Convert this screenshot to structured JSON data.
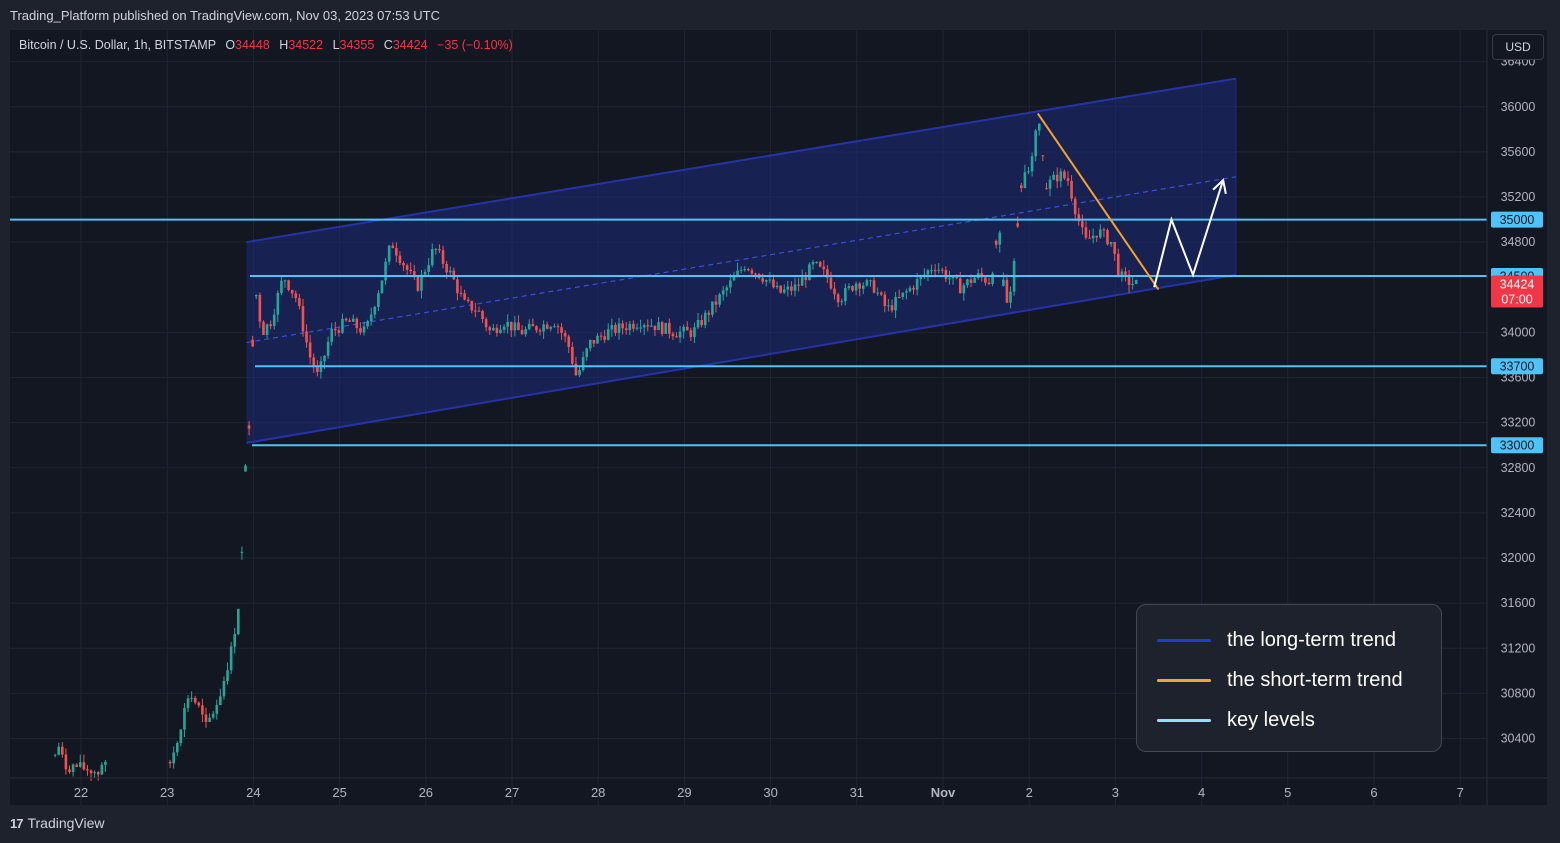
{
  "header": {
    "published": "Trading_Platform published on TradingView.com, Nov 03, 2023 07:53 UTC",
    "symbol": "Bitcoin / U.S. Dollar, 1h, BITSTAMP",
    "ohlc": [
      {
        "k": "O",
        "v": "34448"
      },
      {
        "k": "H",
        "v": "34522"
      },
      {
        "k": "L",
        "v": "34355"
      },
      {
        "k": "C",
        "v": "34424"
      }
    ],
    "change": "−35 (−0.10%)",
    "currency": "USD"
  },
  "footer": {
    "brand": "TradingView"
  },
  "legend": {
    "items": [
      {
        "label": "the long-term trend",
        "color": "#1e3adb"
      },
      {
        "label": "the short-term trend",
        "color": "#f7a22e"
      },
      {
        "label": "key levels",
        "color": "#8fe2ff"
      }
    ]
  },
  "colors": {
    "up": "#26a69a",
    "down": "#ef5350",
    "level": "#4fc3f7",
    "channel": "#2633a8",
    "channel_fill": "#1c2a7a",
    "short_trend": "#f7a22e",
    "projection": "#ffffff",
    "price_label": "#f23645"
  },
  "chart_data": {
    "type": "candlestick",
    "x_axis_ticks": [
      {
        "label": "22",
        "day": 22
      },
      {
        "label": "23",
        "day": 23
      },
      {
        "label": "24",
        "day": 24
      },
      {
        "label": "25",
        "day": 25
      },
      {
        "label": "26",
        "day": 26
      },
      {
        "label": "27",
        "day": 27
      },
      {
        "label": "28",
        "day": 28
      },
      {
        "label": "29",
        "day": 29
      },
      {
        "label": "30",
        "day": 30
      },
      {
        "label": "31",
        "day": 31
      },
      {
        "label": "Nov",
        "day": 32
      },
      {
        "label": "2",
        "day": 33
      },
      {
        "label": "3",
        "day": 34
      },
      {
        "label": "4",
        "day": 35
      },
      {
        "label": "5",
        "day": 36
      },
      {
        "label": "6",
        "day": 37
      },
      {
        "label": "7",
        "day": 38
      }
    ],
    "y_axis_ticks": [
      30400,
      30800,
      31200,
      31600,
      32000,
      32400,
      32800,
      33200,
      33600,
      34000,
      34800,
      35200,
      35600,
      36000,
      36400
    ],
    "ylim": [
      30050,
      36450
    ],
    "key_levels": [
      {
        "value": 35000,
        "label": "35000"
      },
      {
        "value": 34500,
        "label": "34500"
      },
      {
        "value": 33700,
        "label": "33700"
      },
      {
        "value": 33000,
        "label": "33000"
      }
    ],
    "last_price": {
      "value": 34424,
      "label": "34424",
      "countdown": "07:00"
    },
    "channel": {
      "upper": [
        [
          23.92,
          34800
        ],
        [
          35.4,
          36250
        ]
      ],
      "lower": [
        [
          23.92,
          33020
        ],
        [
          35.4,
          34510
        ]
      ],
      "mid": [
        [
          23.92,
          33910
        ],
        [
          35.4,
          35380
        ]
      ]
    },
    "short_term_trend": [
      [
        33.1,
        35940
      ],
      [
        34.5,
        34380
      ]
    ],
    "projection": [
      [
        34.45,
        34400
      ],
      [
        34.65,
        35000
      ],
      [
        34.9,
        34510
      ],
      [
        35.25,
        35350
      ]
    ],
    "price_path": [
      [
        21.7,
        30250
      ],
      [
        21.75,
        30350
      ],
      [
        21.8,
        30150
      ],
      [
        21.95,
        30150
      ],
      [
        22.2,
        30100
      ],
      [
        22.25,
        30200
      ],
      [
        22.3,
        30120
      ],
      [
        23.0,
        30100
      ],
      [
        23.1,
        30350
      ],
      [
        23.25,
        30800
      ],
      [
        23.35,
        30700
      ],
      [
        23.45,
        30500
      ],
      [
        23.6,
        30750
      ],
      [
        23.75,
        31200
      ],
      [
        23.85,
        31700
      ],
      [
        23.9,
        32700
      ],
      [
        23.95,
        33200
      ],
      [
        24.02,
        34400
      ],
      [
        24.1,
        34000
      ],
      [
        24.2,
        34100
      ],
      [
        24.35,
        34500
      ],
      [
        24.5,
        34300
      ],
      [
        24.65,
        33800
      ],
      [
        24.75,
        33600
      ],
      [
        24.9,
        34000
      ],
      [
        25.1,
        34100
      ],
      [
        25.3,
        34000
      ],
      [
        25.5,
        34500
      ],
      [
        25.6,
        34800
      ],
      [
        25.75,
        34600
      ],
      [
        25.9,
        34400
      ],
      [
        26.1,
        34750
      ],
      [
        26.3,
        34500
      ],
      [
        26.45,
        34250
      ],
      [
        26.6,
        34200
      ],
      [
        26.75,
        34000
      ],
      [
        26.9,
        34100
      ],
      [
        27.1,
        34000
      ],
      [
        27.3,
        34050
      ],
      [
        27.5,
        34100
      ],
      [
        27.65,
        33900
      ],
      [
        27.75,
        33600
      ],
      [
        27.9,
        33900
      ],
      [
        28.1,
        34000
      ],
      [
        28.3,
        34050
      ],
      [
        28.5,
        34100
      ],
      [
        28.7,
        34050
      ],
      [
        28.9,
        34000
      ],
      [
        29.1,
        34000
      ],
      [
        29.3,
        34200
      ],
      [
        29.5,
        34400
      ],
      [
        29.7,
        34600
      ],
      [
        29.9,
        34500
      ],
      [
        30.1,
        34350
      ],
      [
        30.3,
        34400
      ],
      [
        30.5,
        34600
      ],
      [
        30.65,
        34500
      ],
      [
        30.8,
        34300
      ],
      [
        31.0,
        34450
      ],
      [
        31.2,
        34400
      ],
      [
        31.35,
        34200
      ],
      [
        31.5,
        34300
      ],
      [
        31.7,
        34450
      ],
      [
        31.9,
        34600
      ],
      [
        32.05,
        34500
      ],
      [
        32.2,
        34400
      ],
      [
        32.4,
        34500
      ],
      [
        32.55,
        34450
      ],
      [
        32.65,
        34950
      ],
      [
        32.72,
        34200
      ],
      [
        32.8,
        34350
      ],
      [
        32.9,
        35300
      ],
      [
        33.0,
        35450
      ],
      [
        33.1,
        35900
      ],
      [
        33.2,
        35300
      ],
      [
        33.35,
        35400
      ],
      [
        33.45,
        35350
      ],
      [
        33.55,
        35050
      ],
      [
        33.65,
        34800
      ],
      [
        33.8,
        34900
      ],
      [
        33.95,
        34800
      ],
      [
        34.05,
        34500
      ],
      [
        34.15,
        34450
      ],
      [
        34.25,
        34424
      ]
    ]
  }
}
